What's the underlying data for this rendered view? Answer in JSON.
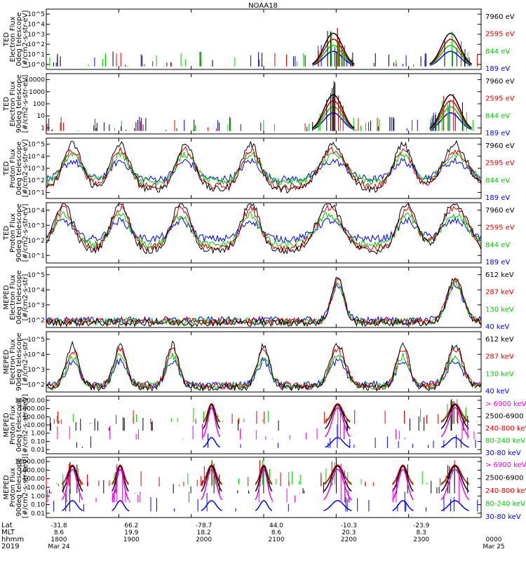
{
  "chart_data": {
    "type": "line",
    "title": "NOAA18",
    "x_axis": {
      "labels": [
        {
          "text": "Lat",
          "values": [
            "-31.8",
            "66.2",
            "-78.7",
            "44.0",
            "-10.3",
            "-23.9",
            ""
          ]
        },
        {
          "text": "MLT",
          "values": [
            "8.6",
            "19.9",
            "18.2",
            "8.6",
            "20.3",
            "8.3",
            ""
          ]
        },
        {
          "text": "hhmm",
          "values": [
            "1800",
            "1900",
            "2000",
            "2100",
            "2200",
            "2300",
            "0000"
          ]
        },
        {
          "text": "2019",
          "values": [
            "Mar 24",
            "",
            "",
            "",
            "",
            "",
            "Mar 25"
          ]
        }
      ],
      "times": [
        "1800",
        "1900",
        "2000",
        "2100",
        "2200",
        "2300",
        "0000"
      ]
    },
    "panels": [
      {
        "ylabel": [
          "TED",
          "Electron Flux",
          "0deg telescope",
          "[#/cm2-s-str-eV]"
        ],
        "yscale": "log",
        "ytick_labels": [
          "10^0",
          "10^1",
          "10^2",
          "10^3",
          "10^4",
          "10^5"
        ],
        "series": [
          {
            "name": "7960 eV",
            "color": "#000000"
          },
          {
            "name": "2595 eV",
            "color": "#dd0000"
          },
          {
            "name": "844 eV",
            "color": "#00cc00"
          },
          {
            "name": "189 eV",
            "color": "#0000ee"
          }
        ]
      },
      {
        "ylabel": [
          "TED",
          "Electron Flux",
          "90deg telescope",
          "[#/cm2-s-str-eV]"
        ],
        "yscale": "log",
        "ytick_labels": [
          "1",
          "10",
          "100",
          "1000",
          "10000"
        ],
        "series": [
          {
            "name": "7960 eV",
            "color": "#000000"
          },
          {
            "name": "2595 eV",
            "color": "#dd0000"
          },
          {
            "name": "844 eV",
            "color": "#00cc00"
          },
          {
            "name": "189 eV",
            "color": "#0000ee"
          }
        ]
      },
      {
        "ylabel": [
          "TED",
          "Proton Flux",
          "0deg telescope",
          "[#/cm2-s-str-eV]"
        ],
        "yscale": "log",
        "ytick_labels": [
          "10^1",
          "10^2",
          "10^3",
          "10^4",
          "10^5"
        ],
        "series": [
          {
            "name": "7960 eV",
            "color": "#000000"
          },
          {
            "name": "2595 eV",
            "color": "#dd0000"
          },
          {
            "name": "844 eV",
            "color": "#00cc00"
          },
          {
            "name": "189 eV",
            "color": "#0000ee"
          }
        ]
      },
      {
        "ylabel": [
          "TED",
          "Proton Flux",
          "90deg telescope",
          "[#/cm2-s-str-eV]"
        ],
        "yscale": "log",
        "ytick_labels": [
          "10^1",
          "10^2",
          "10^3",
          "10^4"
        ],
        "series": [
          {
            "name": "7960 eV",
            "color": "#000000"
          },
          {
            "name": "2595 eV",
            "color": "#dd0000"
          },
          {
            "name": "844 eV",
            "color": "#00cc00"
          },
          {
            "name": "189 eV",
            "color": "#0000ee"
          }
        ]
      },
      {
        "ylabel": [
          "MEPED",
          "Electron Flux",
          "0deg telescope",
          "[#/cm2-s-str]"
        ],
        "yscale": "log",
        "ytick_labels": [
          "10^2",
          "10^3",
          "10^4",
          "10^5"
        ],
        "series": [
          {
            "name": "612 keV",
            "color": "#000000"
          },
          {
            "name": "287 keV",
            "color": "#dd0000"
          },
          {
            "name": "130 keV",
            "color": "#00cc00"
          },
          {
            "name": "40 keV",
            "color": "#0000ee"
          }
        ]
      },
      {
        "ylabel": [
          "MEPED",
          "Electron Flux",
          "90deg telescope",
          "[#/cm2-s-str]"
        ],
        "yscale": "log",
        "ytick_labels": [
          "10^2",
          "10^3",
          "10^4",
          "10^5"
        ],
        "series": [
          {
            "name": "612 keV",
            "color": "#000000"
          },
          {
            "name": "287 keV",
            "color": "#dd0000"
          },
          {
            "name": "130 keV",
            "color": "#00cc00"
          },
          {
            "name": "40 keV",
            "color": "#0000ee"
          }
        ]
      },
      {
        "ylabel": [
          "MEPED",
          "Proton Flux",
          "0deg telescope",
          "[#/cm2-s-str-keV]"
        ],
        "yscale": "log",
        "ytick_labels": [
          "0.01",
          "0.10",
          "1.00",
          "10.00",
          "100.00",
          "1000.00",
          "10000.00"
        ],
        "series": [
          {
            "name": "> 6900 keV",
            "color": "#ee00ee"
          },
          {
            "name": "2500-6900",
            "color": "#000000"
          },
          {
            "name": "240-800 keV",
            "color": "#dd0000"
          },
          {
            "name": "80-240 keV",
            "color": "#00cc00"
          },
          {
            "name": "30-80 keV",
            "color": "#0000ee"
          }
        ]
      },
      {
        "ylabel": [
          "MEPED",
          "Proton Flux",
          "90deg telescope",
          "[#/cm2-s-str-keV]"
        ],
        "yscale": "log",
        "ytick_labels": [
          "0.01",
          "0.10",
          "1.00",
          "10.00",
          "100.00",
          "1000.00",
          "10000.00"
        ],
        "series": [
          {
            "name": "> 6900 keV",
            "color": "#ee00ee"
          },
          {
            "name": "2500-6900",
            "color": "#000000"
          },
          {
            "name": "240-800 keV",
            "color": "#dd0000"
          },
          {
            "name": "80-240 keV",
            "color": "#00cc00"
          },
          {
            "name": "30-80 keV",
            "color": "#0000ee"
          }
        ]
      }
    ]
  }
}
